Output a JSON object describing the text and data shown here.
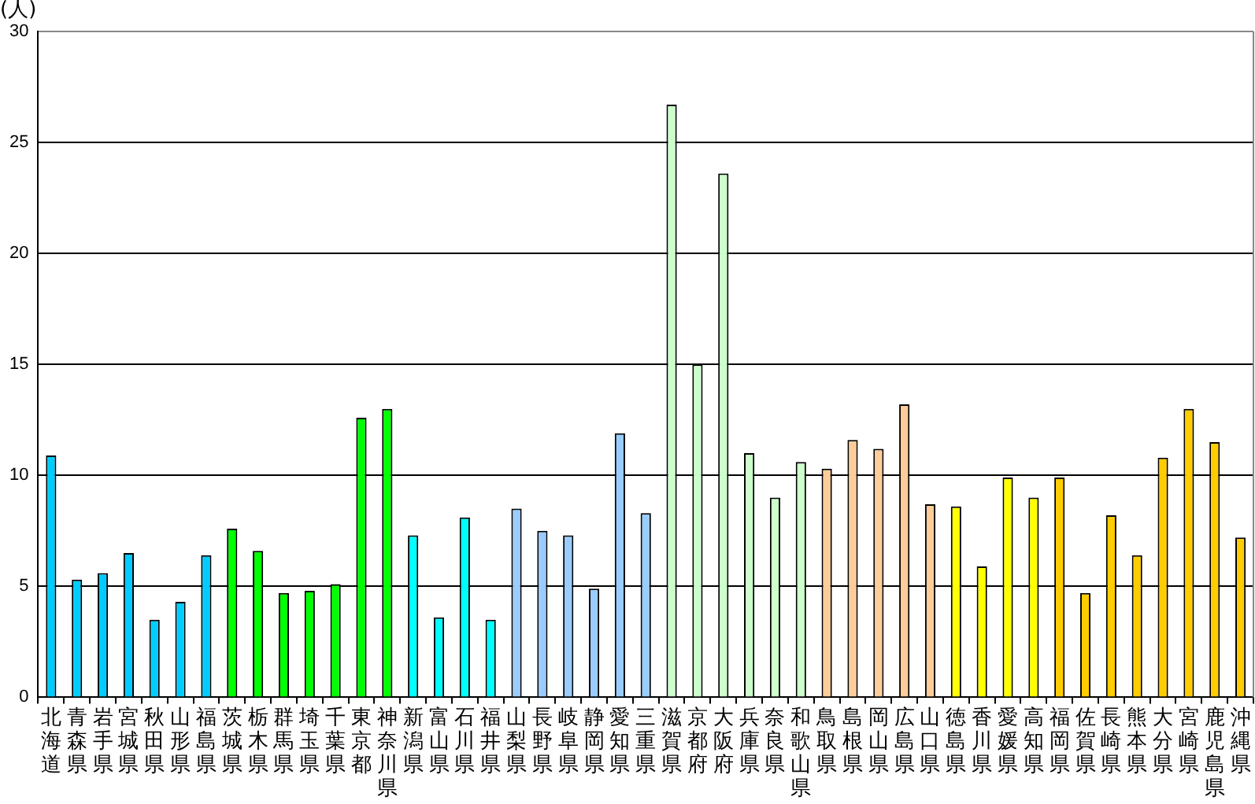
{
  "chart_data": {
    "type": "bar",
    "ylabel": "(人)",
    "categories": [
      "北海道",
      "青森県",
      "岩手県",
      "宮城県",
      "秋田県",
      "山形県",
      "福島県",
      "茨城県",
      "栃木県",
      "群馬県",
      "埼玉県",
      "千葉県",
      "東京都",
      "神奈川県",
      "新潟県",
      "富山県",
      "石川県",
      "福井県",
      "山梨県",
      "長野県",
      "岐阜県",
      "静岡県",
      "愛知県",
      "三重県",
      "滋賀県",
      "京都府",
      "大阪府",
      "兵庫県",
      "奈良県",
      "和歌山県",
      "鳥取県",
      "島根県",
      "岡山県",
      "広島県",
      "山口県",
      "徳島県",
      "香川県",
      "愛媛県",
      "高知県",
      "福岡県",
      "佐賀県",
      "長崎県",
      "熊本県",
      "大分県",
      "宮崎県",
      "鹿児島県",
      "沖縄県"
    ],
    "values": [
      10.9,
      5.3,
      5.6,
      6.5,
      3.5,
      4.3,
      6.4,
      7.6,
      6.6,
      4.7,
      4.8,
      5.1,
      12.6,
      13.0,
      7.3,
      3.6,
      8.1,
      3.5,
      8.5,
      7.5,
      7.3,
      4.9,
      11.9,
      8.3,
      26.7,
      15.0,
      23.6,
      11.0,
      9.0,
      10.6,
      10.3,
      11.6,
      11.2,
      13.2,
      8.7,
      8.6,
      5.9,
      9.9,
      9.0,
      9.9,
      4.7,
      8.2,
      6.4,
      10.8,
      13.0,
      11.5,
      7.2
    ],
    "colors": [
      "#00ccff",
      "#00ccff",
      "#00ccff",
      "#00ccff",
      "#00ccff",
      "#00ccff",
      "#00ccff",
      "#00ff00",
      "#00ff00",
      "#00ff00",
      "#00ff00",
      "#00ff00",
      "#00ff00",
      "#00ff00",
      "#00ffff",
      "#00ffff",
      "#00ffff",
      "#00ffff",
      "#99ccff",
      "#99ccff",
      "#99ccff",
      "#99ccff",
      "#99ccff",
      "#99ccff",
      "#ccffcc",
      "#ccffcc",
      "#ccffcc",
      "#ccffcc",
      "#ccffcc",
      "#ccffcc",
      "#ffcc99",
      "#ffcc99",
      "#ffcc99",
      "#ffcc99",
      "#ffcc99",
      "#ffff00",
      "#ffff00",
      "#ffff00",
      "#ffff00",
      "#ffcc00",
      "#ffcc00",
      "#ffcc00",
      "#ffcc00",
      "#ffcc00",
      "#ffcc00",
      "#ffcc00",
      "#ffcc00"
    ],
    "ylim": [
      0,
      30
    ],
    "yticks": [
      0,
      5,
      10,
      15,
      20,
      25,
      30
    ],
    "grid": "y",
    "legend": false
  }
}
